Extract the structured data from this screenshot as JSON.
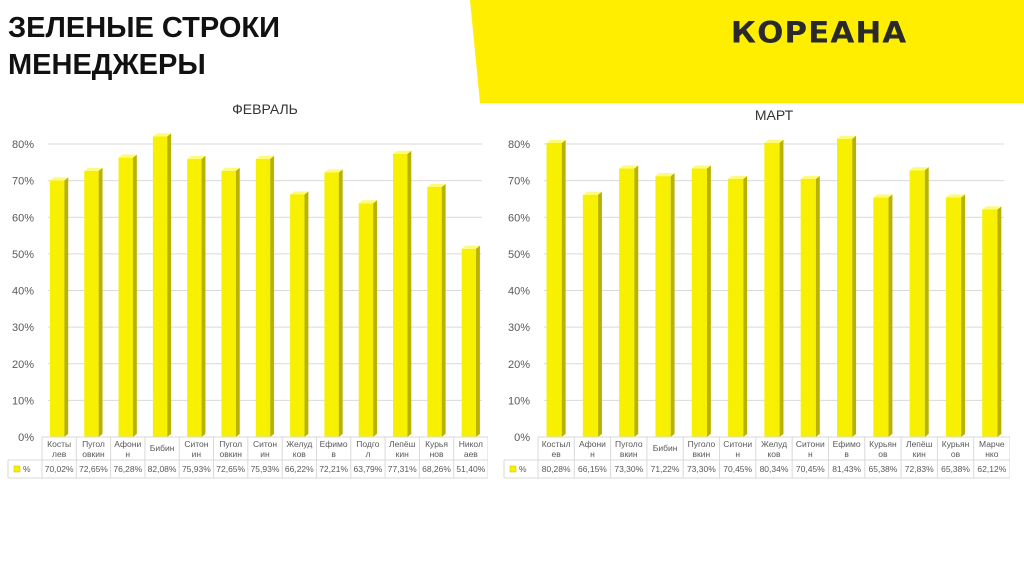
{
  "slide": {
    "title_line1": "ЗЕЛЕНЫЕ СТРОКИ",
    "title_line2": "МЕНЕДЖЕРЫ",
    "logo_text": "КОРЕАНА"
  },
  "colors": {
    "banner": "#ffee00",
    "bar_front": "#f7f000",
    "bar_side": "#b9b200",
    "bar_top": "#fffb7a",
    "grid": "#d9d9d9",
    "axis_text": "#595959"
  },
  "chart_data": [
    {
      "type": "bar",
      "title": "ФЕВРАЛЬ",
      "xlabel": "",
      "ylabel": "",
      "ylim": [
        0,
        0.8
      ],
      "yticks": [
        "0%",
        "10%",
        "20%",
        "30%",
        "40%",
        "50%",
        "60%",
        "70%",
        "80%"
      ],
      "grid": true,
      "legend": "data-table",
      "categories": [
        [
          "Косты",
          "лев"
        ],
        [
          "Пугол",
          "овкин"
        ],
        [
          "Афони",
          "н"
        ],
        [
          "Бибин"
        ],
        [
          "Ситон",
          "ин"
        ],
        [
          "Пугол",
          "овкин"
        ],
        [
          "Ситон",
          "ин"
        ],
        [
          "Желуд",
          "ков"
        ],
        [
          "Ефимо",
          "в"
        ],
        [
          "Подго",
          "л"
        ],
        [
          "Лепёш",
          "кин"
        ],
        [
          "Курья",
          "нов"
        ],
        [
          "Никол",
          "аев"
        ]
      ],
      "series": [
        {
          "name": "%",
          "values": [
            0.7002,
            0.7265,
            0.7628,
            0.8208,
            0.7593,
            0.7265,
            0.7593,
            0.6622,
            0.7221,
            0.6379,
            0.7731,
            0.6826,
            0.514
          ],
          "labels": [
            "70,02%",
            "72,65%",
            "76,28%",
            "82,08%",
            "75,93%",
            "72,65%",
            "75,93%",
            "66,22%",
            "72,21%",
            "63,79%",
            "77,31%",
            "68,26%",
            "51,40%"
          ]
        }
      ]
    },
    {
      "type": "bar",
      "title": "МАРТ",
      "xlabel": "",
      "ylabel": "",
      "ylim": [
        0,
        0.8
      ],
      "yticks": [
        "0%",
        "10%",
        "20%",
        "30%",
        "40%",
        "50%",
        "60%",
        "70%",
        "80%"
      ],
      "grid": true,
      "legend": "data-table",
      "categories": [
        [
          "Костыл",
          "ев"
        ],
        [
          "Афони",
          "н"
        ],
        [
          "Пуголо",
          "вкин"
        ],
        [
          "Бибин"
        ],
        [
          "Пуголо",
          "вкин"
        ],
        [
          "Ситони",
          "н"
        ],
        [
          "Желуд",
          "ков"
        ],
        [
          "Ситони",
          "н"
        ],
        [
          "Ефимо",
          "в"
        ],
        [
          "Курьян",
          "ов"
        ],
        [
          "Лепёш",
          "кин"
        ],
        [
          "Курьян",
          "ов"
        ],
        [
          "Марче",
          "нко"
        ]
      ],
      "series": [
        {
          "name": "%",
          "values": [
            0.8028,
            0.6615,
            0.733,
            0.7122,
            0.733,
            0.7045,
            0.8034,
            0.7045,
            0.8143,
            0.6538,
            0.7283,
            0.6538,
            0.6212
          ],
          "labels": [
            "80,28%",
            "66,15%",
            "73,30%",
            "71,22%",
            "73,30%",
            "70,45%",
            "80,34%",
            "70,45%",
            "81,43%",
            "65,38%",
            "72,83%",
            "65,38%",
            "62,12%"
          ]
        }
      ]
    }
  ]
}
